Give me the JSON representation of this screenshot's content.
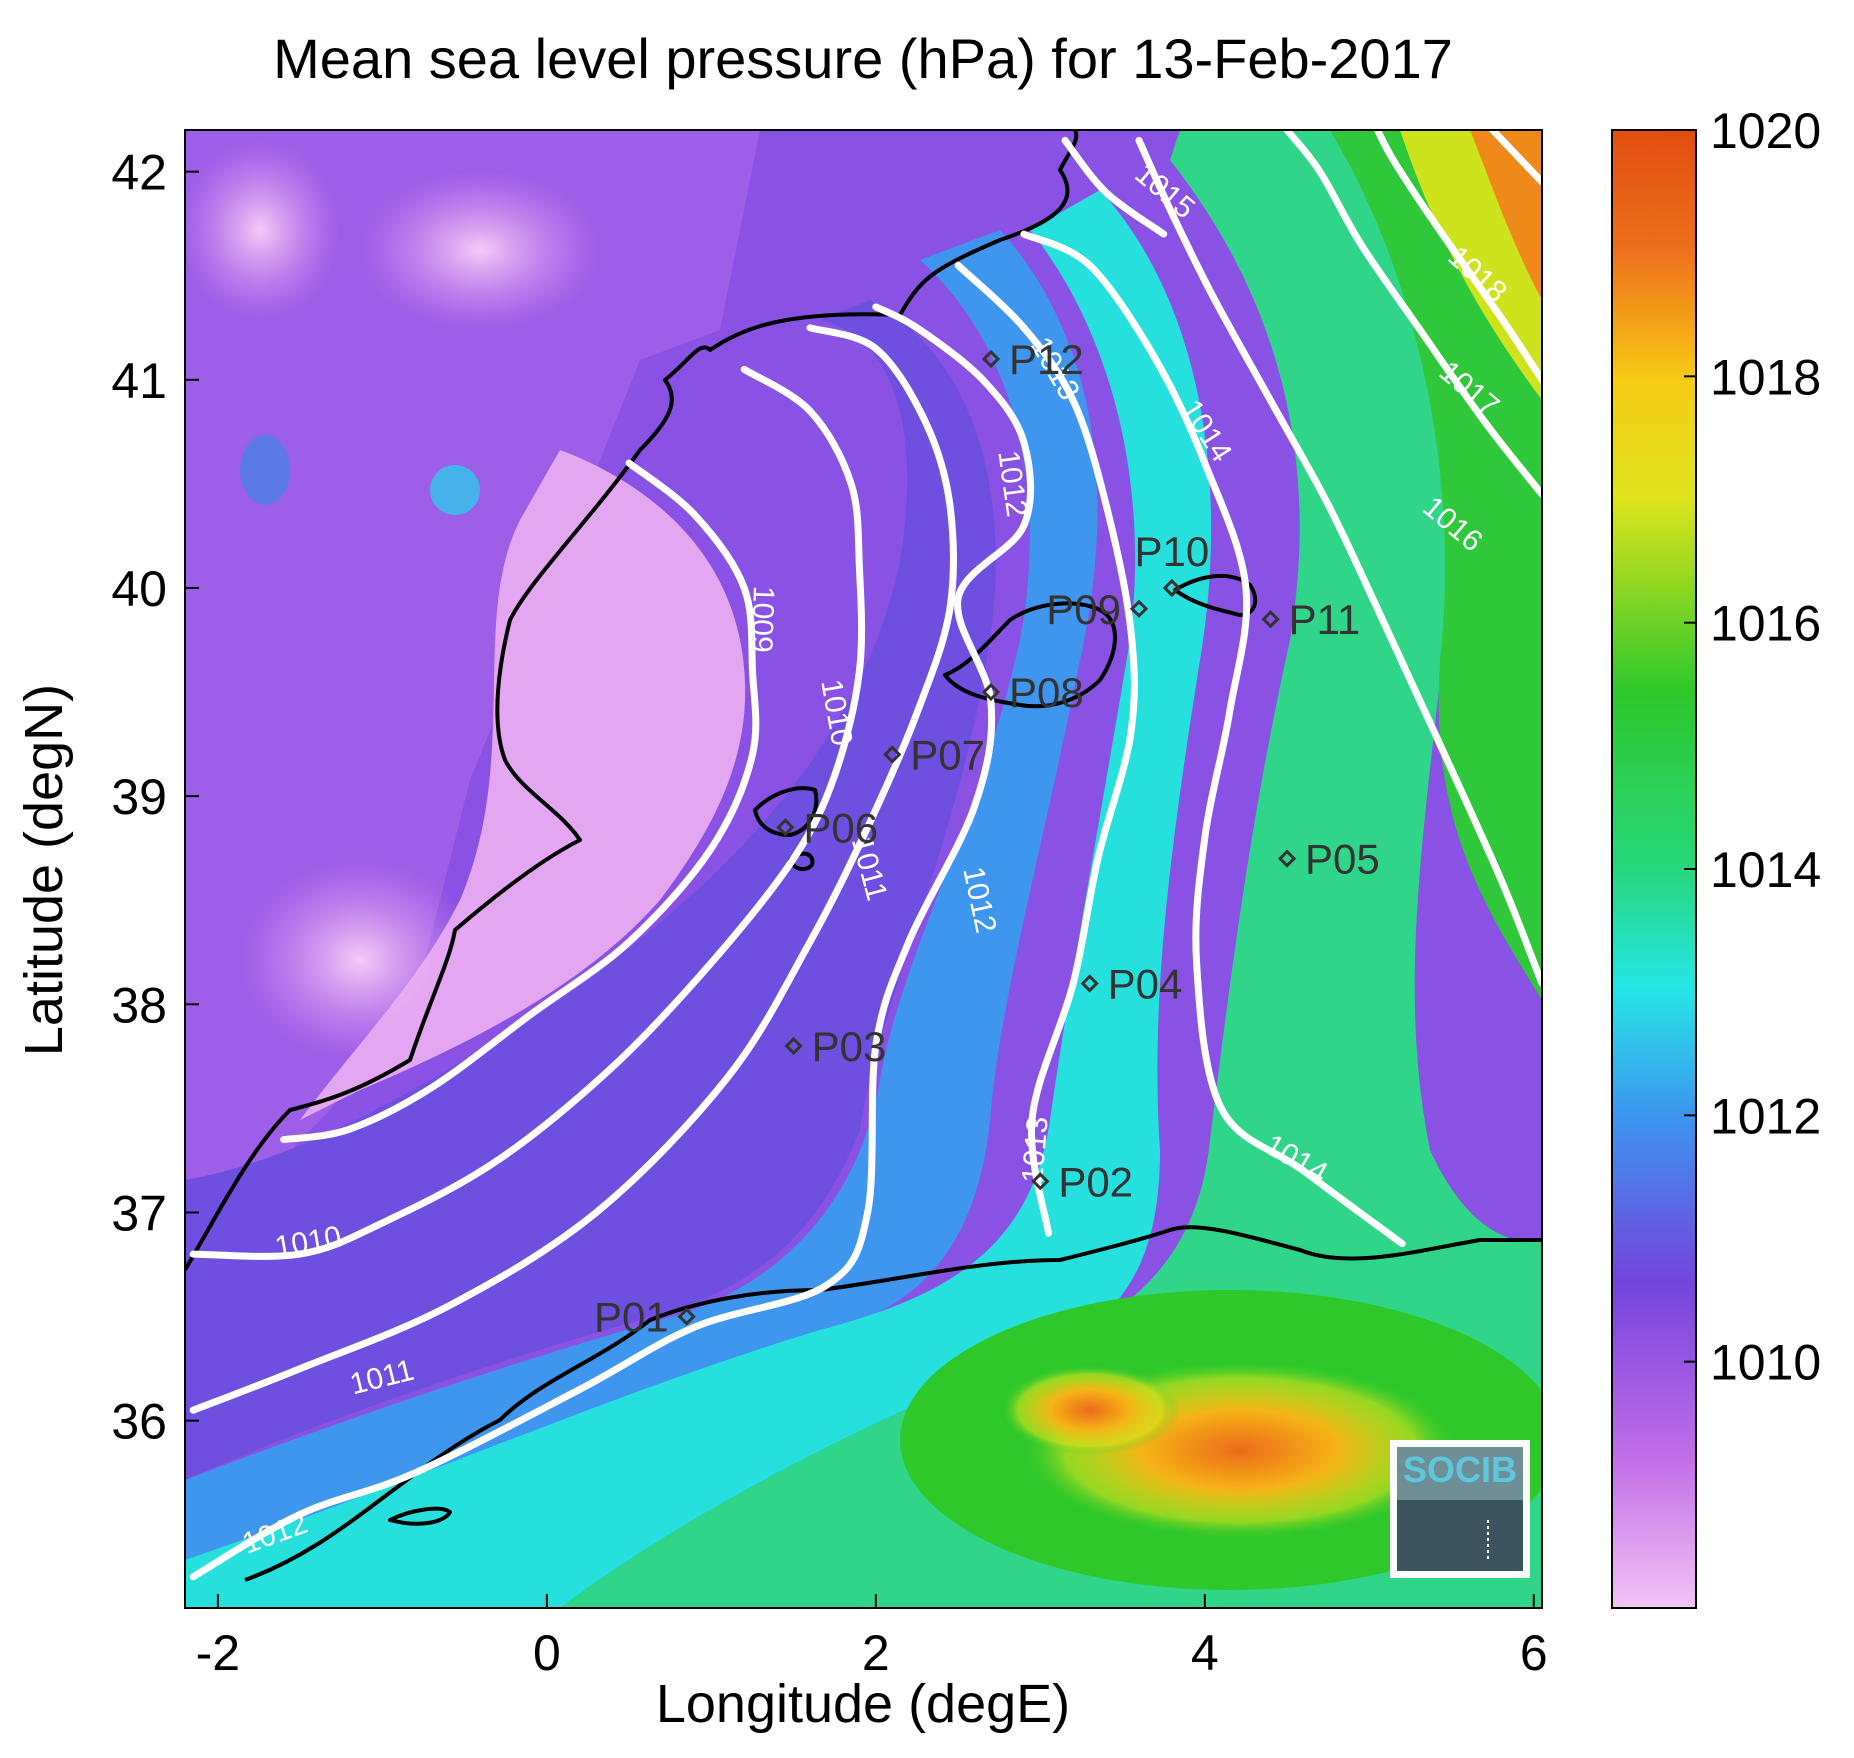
{
  "title": "Mean sea level pressure (hPa) for 13-Feb-2017",
  "xlabel": "Longitude (degE)",
  "ylabel": "Latitude (degN)",
  "x_ticks": [
    {
      "value": -2,
      "label": "-2"
    },
    {
      "value": 0,
      "label": "0"
    },
    {
      "value": 2,
      "label": "2"
    },
    {
      "value": 4,
      "label": "4"
    },
    {
      "value": 6,
      "label": "6"
    }
  ],
  "y_ticks": [
    {
      "value": 36,
      "label": "36"
    },
    {
      "value": 37,
      "label": "37"
    },
    {
      "value": 38,
      "label": "38"
    },
    {
      "value": 39,
      "label": "39"
    },
    {
      "value": 40,
      "label": "40"
    },
    {
      "value": 41,
      "label": "41"
    },
    {
      "value": 42,
      "label": "42"
    }
  ],
  "colorbar": {
    "range": [
      1008,
      1020
    ],
    "ticks": [
      {
        "value": 1010,
        "label": "1010"
      },
      {
        "value": 1012,
        "label": "1012"
      },
      {
        "value": 1014,
        "label": "1014"
      },
      {
        "value": 1016,
        "label": "1016"
      },
      {
        "value": 1018,
        "label": "1018"
      },
      {
        "value": 1020,
        "label": "1020"
      }
    ],
    "colors": [
      "#f2c4f4",
      "#c36ee8",
      "#7444dd",
      "#3d93ef",
      "#26e6e6",
      "#27d77c",
      "#2ec82b",
      "#dde41c",
      "#f7cc14",
      "#ee6e1c",
      "#e04e10"
    ]
  },
  "stations": [
    {
      "id": "P01",
      "lon": 0.85,
      "lat": 36.5,
      "label": "P01",
      "side": "left"
    },
    {
      "id": "P02",
      "lon": 3.0,
      "lat": 37.15,
      "label": "P02",
      "side": "right"
    },
    {
      "id": "P03",
      "lon": 1.5,
      "lat": 37.8,
      "label": "P03",
      "side": "right"
    },
    {
      "id": "P04",
      "lon": 3.3,
      "lat": 38.1,
      "label": "P04",
      "side": "right"
    },
    {
      "id": "P05",
      "lon": 4.5,
      "lat": 38.7,
      "label": "P05",
      "side": "right"
    },
    {
      "id": "P06",
      "lon": 1.45,
      "lat": 38.85,
      "label": "P06",
      "side": "right"
    },
    {
      "id": "P07",
      "lon": 2.1,
      "lat": 39.2,
      "label": "P07",
      "side": "right"
    },
    {
      "id": "P08",
      "lon": 2.7,
      "lat": 39.5,
      "label": "P08",
      "side": "right"
    },
    {
      "id": "P09",
      "lon": 3.6,
      "lat": 39.9,
      "label": "P09",
      "side": "left"
    },
    {
      "id": "P10",
      "lon": 3.8,
      "lat": 40.0,
      "label": "P10",
      "side": "above"
    },
    {
      "id": "P11",
      "lon": 4.4,
      "lat": 39.85,
      "label": "P11",
      "side": "right"
    },
    {
      "id": "P12",
      "lon": 2.7,
      "lat": 41.1,
      "label": "P12",
      "side": "right"
    }
  ],
  "contours": [
    {
      "level": 1009,
      "label": "1009",
      "points": [
        [
          -1.6,
          37.35
        ],
        [
          -1.2,
          37.4
        ],
        [
          -0.7,
          37.6
        ],
        [
          -0.1,
          37.95
        ],
        [
          0.5,
          38.3
        ],
        [
          1.0,
          38.75
        ],
        [
          1.25,
          39.2
        ],
        [
          1.25,
          39.6
        ],
        [
          1.2,
          40.0
        ],
        [
          0.9,
          40.35
        ],
        [
          0.5,
          40.6
        ]
      ],
      "label_at": [
        1.3,
        39.85
      ],
      "label_angle": 92
    },
    {
      "level": 1010,
      "label": "1010",
      "points": [
        [
          -2.15,
          36.8
        ],
        [
          -1.5,
          36.8
        ],
        [
          -1.0,
          36.95
        ],
        [
          -0.3,
          37.25
        ],
        [
          0.4,
          37.7
        ],
        [
          1.0,
          38.2
        ],
        [
          1.5,
          38.7
        ],
        [
          1.75,
          39.1
        ],
        [
          1.9,
          39.6
        ],
        [
          1.9,
          40.1
        ],
        [
          1.85,
          40.5
        ],
        [
          1.6,
          40.85
        ],
        [
          1.2,
          41.05
        ]
      ],
      "label_at": [
        1.75,
        39.4
      ],
      "label_angle": 80,
      "label2_at": [
        -1.45,
        36.85
      ],
      "label2_angle": -10
    },
    {
      "level": 1011,
      "label": "1011",
      "points": [
        [
          -2.15,
          36.05
        ],
        [
          -1.5,
          36.25
        ],
        [
          -0.6,
          36.55
        ],
        [
          0.3,
          37.0
        ],
        [
          1.1,
          37.65
        ],
        [
          1.6,
          38.3
        ],
        [
          1.95,
          38.85
        ],
        [
          2.25,
          39.4
        ],
        [
          2.45,
          39.9
        ],
        [
          2.45,
          40.4
        ],
        [
          2.3,
          40.8
        ],
        [
          2.0,
          41.15
        ],
        [
          1.6,
          41.25
        ]
      ],
      "label_at": [
        -1.0,
        36.2
      ],
      "label_angle": -14,
      "label2_at": [
        1.95,
        38.65
      ],
      "label2_angle": 75
    },
    {
      "level": 1012,
      "label": "1012",
      "points": [
        [
          -2.15,
          35.25
        ],
        [
          -1.5,
          35.55
        ],
        [
          -0.8,
          35.75
        ],
        [
          0.2,
          36.15
        ],
        [
          0.9,
          36.45
        ],
        [
          1.7,
          36.65
        ],
        [
          1.95,
          37.0
        ],
        [
          2.0,
          37.8
        ],
        [
          2.2,
          38.3
        ],
        [
          2.6,
          38.95
        ],
        [
          2.7,
          39.45
        ],
        [
          2.5,
          39.95
        ],
        [
          2.9,
          40.3
        ],
        [
          2.9,
          40.7
        ],
        [
          2.65,
          41.0
        ],
        [
          2.25,
          41.25
        ],
        [
          2.0,
          41.35
        ]
      ],
      "label_at": [
        -1.65,
        35.45
      ],
      "label_angle": -20,
      "label2_at": [
        2.62,
        38.5
      ],
      "label2_angle": 78,
      "label3_at": [
        2.82,
        40.5
      ],
      "label3_angle": 82
    },
    {
      "level": 1013,
      "label": "1013",
      "points": [
        [
          3.05,
          36.9
        ],
        [
          2.95,
          37.45
        ],
        [
          3.2,
          38.1
        ],
        [
          3.35,
          38.7
        ],
        [
          3.55,
          39.3
        ],
        [
          3.55,
          39.8
        ],
        [
          3.4,
          40.4
        ],
        [
          3.2,
          40.9
        ],
        [
          2.9,
          41.25
        ],
        [
          2.5,
          41.55
        ]
      ],
      "label_at": [
        2.98,
        37.3
      ],
      "label_angle": -85,
      "label2_at": [
        3.08,
        41.05
      ],
      "label2_angle": 60
    },
    {
      "level": 1014,
      "label": "1014",
      "points": [
        [
          5.2,
          36.85
        ],
        [
          4.6,
          37.2
        ],
        [
          4.1,
          37.5
        ],
        [
          3.95,
          38.2
        ],
        [
          4.0,
          38.8
        ],
        [
          4.15,
          39.4
        ],
        [
          4.25,
          40.0
        ],
        [
          4.0,
          40.6
        ],
        [
          3.7,
          41.1
        ],
        [
          3.3,
          41.55
        ],
        [
          2.9,
          41.7
        ]
      ],
      "label_at": [
        4.55,
        37.25
      ],
      "label_angle": 30,
      "label2_at": [
        4.0,
        40.75
      ],
      "label2_angle": 57
    },
    {
      "level": 1015,
      "label": "1015",
      "points": [
        [
          3.15,
          42.15
        ],
        [
          3.4,
          41.9
        ],
        [
          3.75,
          41.7
        ]
      ],
      "label_at": [
        3.75,
        41.9
      ],
      "label_angle": 40
    },
    {
      "level": 1016,
      "label": "1016",
      "points": [
        [
          6.05,
          38.1
        ],
        [
          5.8,
          38.6
        ],
        [
          5.4,
          39.3
        ],
        [
          5.05,
          39.9
        ],
        [
          4.75,
          40.4
        ],
        [
          4.4,
          40.9
        ],
        [
          4.05,
          41.4
        ],
        [
          3.8,
          41.8
        ],
        [
          3.6,
          42.15
        ]
      ],
      "label_at": [
        5.5,
        40.3
      ],
      "label_angle": 40
    },
    {
      "level": 1017,
      "label": "1017",
      "points": [
        [
          6.05,
          40.45
        ],
        [
          5.7,
          40.8
        ],
        [
          5.3,
          41.25
        ],
        [
          4.95,
          41.65
        ],
        [
          4.7,
          42.0
        ],
        [
          4.5,
          42.2
        ]
      ],
      "label_at": [
        5.6,
        40.95
      ],
      "label_angle": 40
    },
    {
      "level": 1018,
      "label": "1018",
      "points": [
        [
          6.05,
          41.0
        ],
        [
          5.8,
          41.3
        ],
        [
          5.4,
          41.75
        ],
        [
          5.15,
          42.05
        ],
        [
          5.05,
          42.2
        ]
      ],
      "label_at": [
        5.65,
        41.5
      ],
      "label_angle": 42
    },
    {
      "level": 1019,
      "label": "",
      "points": [
        [
          6.05,
          41.95
        ],
        [
          5.75,
          42.2
        ]
      ],
      "label_at": null
    }
  ]
}
